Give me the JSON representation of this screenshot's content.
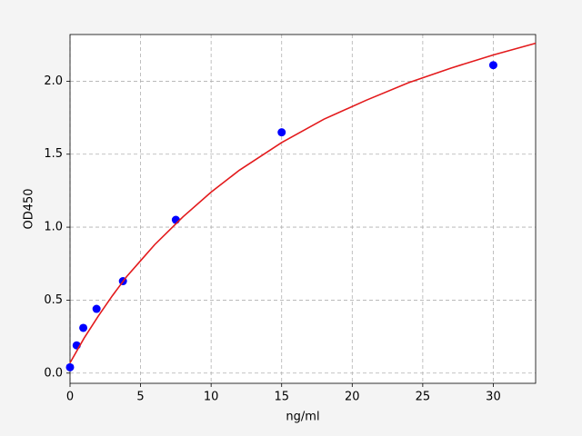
{
  "chart_data": {
    "type": "scatter",
    "xlabel": "ng/ml",
    "ylabel": "OD450",
    "xlim": [
      0,
      33
    ],
    "ylim": [
      -0.07,
      2.32
    ],
    "xticks": [
      0,
      5,
      10,
      15,
      20,
      25,
      30
    ],
    "yticks": [
      {
        "value": 0,
        "label": "0.0"
      },
      {
        "value": 0.5,
        "label": "0.5"
      },
      {
        "value": 1,
        "label": "1.0"
      },
      {
        "value": 1.5,
        "label": "1.5"
      },
      {
        "value": 2,
        "label": "2.0"
      }
    ],
    "grid": true,
    "series": [
      {
        "kind": "points",
        "color": "#0000ff",
        "x": [
          0,
          0.47,
          0.94,
          1.88,
          3.75,
          7.5,
          15,
          30
        ],
        "values": [
          0.04,
          0.19,
          0.31,
          0.44,
          0.63,
          1.05,
          1.65,
          2.11
        ]
      },
      {
        "kind": "curve",
        "color": "#e31a1c",
        "x": [
          0,
          1,
          2,
          3,
          4,
          5,
          6,
          8,
          10,
          12,
          15,
          18,
          21,
          24,
          27,
          30,
          33
        ],
        "values": [
          0.07,
          0.24,
          0.39,
          0.53,
          0.66,
          0.77,
          0.88,
          1.07,
          1.24,
          1.39,
          1.58,
          1.74,
          1.87,
          1.99,
          2.09,
          2.18,
          2.26
        ]
      }
    ]
  }
}
